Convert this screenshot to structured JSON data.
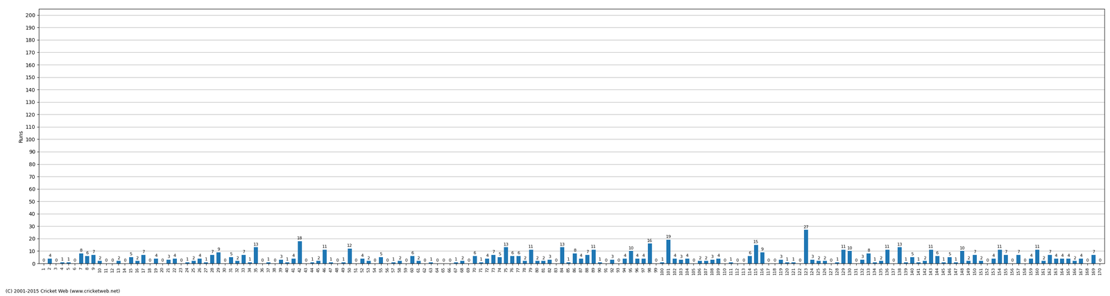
{
  "chart_data": {
    "type": "bar",
    "y_label": "Runs",
    "annotations": [
      "(C) 2001-2015 Cricket Web (www.cricketweb.net)"
    ],
    "categories": [
      "1",
      "2",
      "3",
      "4",
      "5",
      "6",
      "7",
      "8",
      "9",
      "10",
      "11",
      "12",
      "13",
      "14",
      "15",
      "16",
      "17",
      "18",
      "19",
      "20",
      "21",
      "22",
      "23",
      "24",
      "25",
      "26",
      "27",
      "28",
      "29",
      "30",
      "31",
      "32",
      "33",
      "34",
      "35",
      "36",
      "37",
      "38",
      "39",
      "40",
      "41",
      "42",
      "43",
      "44",
      "45",
      "46",
      "47",
      "48",
      "49",
      "50",
      "51",
      "52",
      "53",
      "54",
      "55",
      "56",
      "57",
      "58",
      "59",
      "60",
      "61",
      "62",
      "63",
      "64",
      "65",
      "66",
      "67",
      "68",
      "69",
      "70",
      "71",
      "72",
      "73",
      "74",
      "75",
      "76",
      "77",
      "78",
      "79",
      "80",
      "81",
      "82",
      "83",
      "84",
      "85",
      "86",
      "87",
      "88",
      "89",
      "90",
      "91",
      "92",
      "93",
      "94",
      "95",
      "96",
      "97",
      "98",
      "99",
      "100",
      "101",
      "102",
      "103",
      "104",
      "105",
      "106",
      "107",
      "108",
      "109",
      "110",
      "111",
      "112",
      "113",
      "114",
      "115",
      "116",
      "117",
      "118",
      "119",
      "120",
      "121",
      "122",
      "123",
      "124",
      "125",
      "126",
      "127",
      "128",
      "129",
      "130",
      "131",
      "132",
      "133",
      "134",
      "135",
      "136",
      "137",
      "138",
      "139",
      "140",
      "141",
      "142",
      "143",
      "144",
      "145",
      "146",
      "147",
      "148",
      "149",
      "150",
      "151",
      "152",
      "153",
      "154",
      "155",
      "156",
      "157",
      "158",
      "159",
      "160",
      "161",
      "162",
      "163",
      "164",
      "165",
      "166",
      "167",
      "168",
      "169",
      "170"
    ],
    "values": [
      0,
      4,
      0,
      1,
      1,
      0,
      8,
      6,
      7,
      2,
      0,
      0,
      2,
      0,
      5,
      2,
      7,
      0,
      4,
      0,
      3,
      4,
      0,
      1,
      2,
      4,
      1,
      7,
      9,
      0,
      5,
      2,
      7,
      1,
      13,
      0,
      1,
      0,
      3,
      1,
      4,
      18,
      0,
      1,
      2,
      11,
      1,
      0,
      1,
      12,
      0,
      4,
      2,
      0,
      5,
      0,
      1,
      2,
      0,
      6,
      2,
      0,
      1,
      0,
      0,
      0,
      1,
      2,
      0,
      6,
      1,
      4,
      7,
      5,
      13,
      6,
      6,
      2,
      11,
      2,
      2,
      3,
      0,
      13,
      1,
      8,
      4,
      7,
      11,
      1,
      0,
      3,
      0,
      4,
      10,
      4,
      4,
      16,
      0,
      1,
      19,
      4,
      3,
      4,
      0,
      2,
      2,
      3,
      4,
      0,
      1,
      0,
      0,
      6,
      15,
      9,
      0,
      0,
      3,
      1,
      1,
      0,
      27,
      3,
      2,
      2,
      0,
      1,
      11,
      10,
      0,
      3,
      8,
      1,
      2,
      11,
      0,
      13,
      1,
      5,
      1,
      2,
      11,
      6,
      1,
      5,
      1,
      10,
      2,
      7,
      2,
      0,
      4,
      11,
      7,
      0,
      7,
      0,
      4,
      11,
      2,
      7,
      4,
      4,
      4,
      2,
      4,
      0,
      7,
      0
    ],
    "ylim": [
      0,
      205
    ],
    "yticks": [
      0,
      10,
      20,
      30,
      40,
      50,
      60,
      70,
      80,
      90,
      100,
      110,
      120,
      130,
      140,
      150,
      160,
      170,
      180,
      190,
      200
    ],
    "grid": true,
    "data_labels": true
  }
}
